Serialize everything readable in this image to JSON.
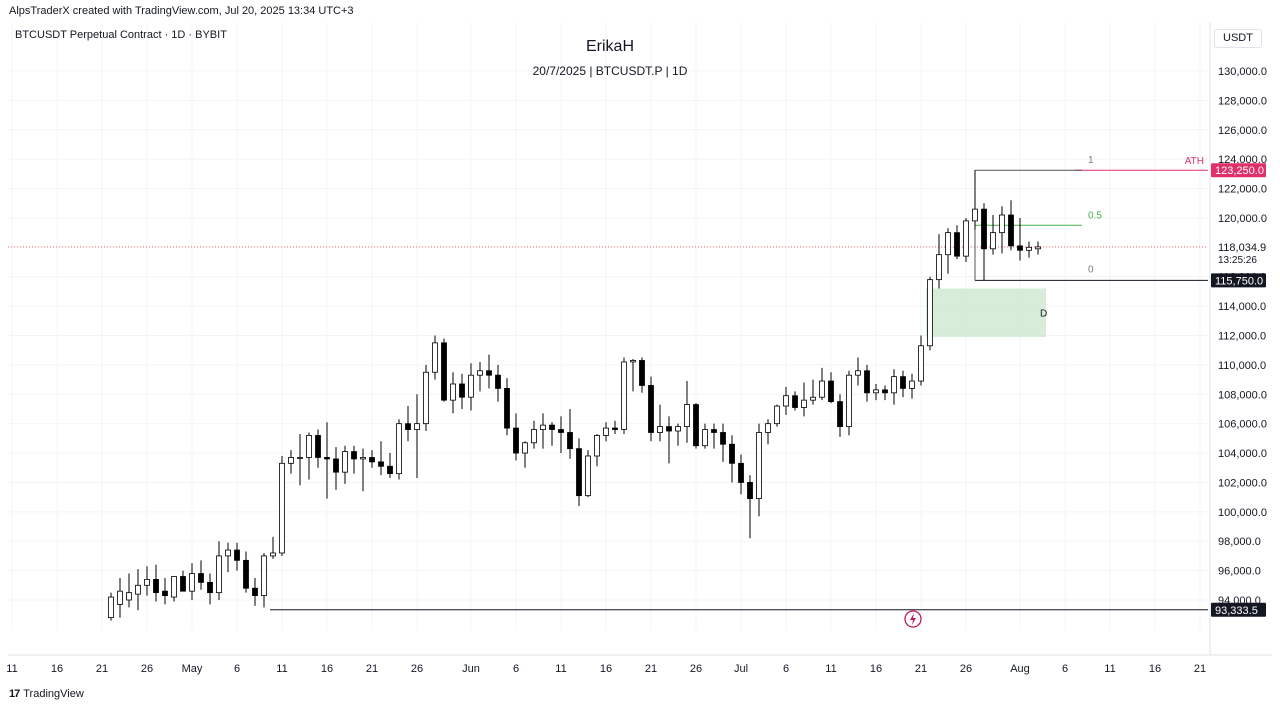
{
  "header": {
    "credit": "AlpsTraderX created with TradingView.com, Jul 20, 2025 13:34 UTC+3",
    "symbol": "BTCUSDT Perpetual Contract · 1D · BYBIT",
    "title": "ErikaH",
    "subtitle": "20/7/2025 | BTCUSDT.P | 1D",
    "currency": "USDT"
  },
  "footer": {
    "brand": "TradingView",
    "logo": "17"
  },
  "colors": {
    "up": "#ffffff",
    "down": "#000000",
    "ath": "#e0306a",
    "fib_mid": "#4caf50",
    "zone": "#c8e6c9",
    "price_dotted": "#f06b6b"
  },
  "chart_data": {
    "type": "candlestick",
    "ylim": [
      92600,
      131800
    ],
    "y_ticks": [
      "94,000.0",
      "96,000.0",
      "98,000.0",
      "100,000.0",
      "102,000.0",
      "104,000.0",
      "106,000.0",
      "108,000.0",
      "110,000.0",
      "112,000.0",
      "114,000.0",
      "116,000.0",
      "118,000.0",
      "120,000.0",
      "122,000.0",
      "124,000.0",
      "126,000.0",
      "128,000.0",
      "130,000.0"
    ],
    "x_ticks": [
      "11",
      "16",
      "21",
      "26",
      "May",
      "6",
      "11",
      "16",
      "21",
      "26",
      "Jun",
      "6",
      "11",
      "16",
      "21",
      "26",
      "Jul",
      "6",
      "11",
      "16",
      "21",
      "26",
      "Aug",
      "6",
      "11",
      "16",
      "21"
    ],
    "x_tick_days": [
      0,
      5,
      10,
      15,
      20,
      25,
      30,
      35,
      40,
      45,
      51,
      56,
      61,
      66,
      71,
      76,
      81,
      86,
      91,
      96,
      101,
      106,
      112,
      117,
      122,
      127,
      132
    ],
    "xlim_days": [
      0,
      132
    ],
    "first_day": "Apr 11",
    "candles": [
      {
        "d": 11,
        "o": 92800,
        "h": 94500,
        "l": 92600,
        "c": 94200
      },
      {
        "d": 12,
        "o": 93700,
        "h": 95500,
        "l": 92800,
        "c": 94600
      },
      {
        "d": 13,
        "o": 94000,
        "h": 95800,
        "l": 93500,
        "c": 94500
      },
      {
        "d": 14,
        "o": 94400,
        "h": 96100,
        "l": 93300,
        "c": 95000
      },
      {
        "d": 15,
        "o": 95000,
        "h": 96300,
        "l": 94300,
        "c": 95400
      },
      {
        "d": 16,
        "o": 95400,
        "h": 96400,
        "l": 93900,
        "c": 94500
      },
      {
        "d": 17,
        "o": 94600,
        "h": 95500,
        "l": 93700,
        "c": 94300
      },
      {
        "d": 18,
        "o": 94200,
        "h": 95500,
        "l": 93900,
        "c": 95600
      },
      {
        "d": 19,
        "o": 95600,
        "h": 96000,
        "l": 94600,
        "c": 94600
      },
      {
        "d": 20,
        "o": 94600,
        "h": 96500,
        "l": 94000,
        "c": 95800
      },
      {
        "d": 21,
        "o": 95800,
        "h": 96700,
        "l": 94700,
        "c": 95200
      },
      {
        "d": 22,
        "o": 95200,
        "h": 95800,
        "l": 93700,
        "c": 94500
      },
      {
        "d": 23,
        "o": 94500,
        "h": 98000,
        "l": 94000,
        "c": 97000
      },
      {
        "d": 24,
        "o": 97000,
        "h": 97900,
        "l": 95900,
        "c": 97400
      },
      {
        "d": 25,
        "o": 97400,
        "h": 97900,
        "l": 96000,
        "c": 96700
      },
      {
        "d": 26,
        "o": 96700,
        "h": 97300,
        "l": 94500,
        "c": 94800
      },
      {
        "d": 27,
        "o": 94800,
        "h": 95500,
        "l": 93600,
        "c": 94300
      },
      {
        "d": 28,
        "o": 94300,
        "h": 97200,
        "l": 93500,
        "c": 97000
      },
      {
        "d": 29,
        "o": 97000,
        "h": 98300,
        "l": 96800,
        "c": 97200
      },
      {
        "d": 30,
        "o": 97200,
        "h": 103800,
        "l": 97000,
        "c": 103300
      },
      {
        "d": 31,
        "o": 103300,
        "h": 104200,
        "l": 102600,
        "c": 103700
      },
      {
        "d": 32,
        "o": 103700,
        "h": 105300,
        "l": 101800,
        "c": 103700
      },
      {
        "d": 33,
        "o": 103700,
        "h": 105400,
        "l": 102200,
        "c": 105200
      },
      {
        "d": 34,
        "o": 105200,
        "h": 105600,
        "l": 103000,
        "c": 103700
      },
      {
        "d": 35,
        "o": 103700,
        "h": 106100,
        "l": 100900,
        "c": 103600
      },
      {
        "d": 36,
        "o": 103600,
        "h": 104400,
        "l": 101500,
        "c": 102700
      },
      {
        "d": 37,
        "o": 102700,
        "h": 104500,
        "l": 101900,
        "c": 104100
      },
      {
        "d": 38,
        "o": 104100,
        "h": 104500,
        "l": 102600,
        "c": 103600
      },
      {
        "d": 39,
        "o": 103600,
        "h": 104300,
        "l": 101400,
        "c": 103700
      },
      {
        "d": 40,
        "o": 103700,
        "h": 104200,
        "l": 103000,
        "c": 103400
      },
      {
        "d": 41,
        "o": 103400,
        "h": 104800,
        "l": 102500,
        "c": 103100
      },
      {
        "d": 42,
        "o": 103100,
        "h": 104000,
        "l": 102300,
        "c": 102600
      },
      {
        "d": 43,
        "o": 102600,
        "h": 106300,
        "l": 102200,
        "c": 106000
      },
      {
        "d": 44,
        "o": 106000,
        "h": 107200,
        "l": 104800,
        "c": 105600
      },
      {
        "d": 45,
        "o": 105600,
        "h": 108000,
        "l": 102300,
        "c": 106000
      },
      {
        "d": 46,
        "o": 106000,
        "h": 110000,
        "l": 105500,
        "c": 109500
      },
      {
        "d": 47,
        "o": 109500,
        "h": 112000,
        "l": 109000,
        "c": 111500
      },
      {
        "d": 48,
        "o": 111500,
        "h": 111800,
        "l": 107500,
        "c": 107600
      },
      {
        "d": 49,
        "o": 107600,
        "h": 109500,
        "l": 106700,
        "c": 108700
      },
      {
        "d": 50,
        "o": 108700,
        "h": 109400,
        "l": 107000,
        "c": 107800
      },
      {
        "d": 51,
        "o": 107800,
        "h": 110100,
        "l": 106900,
        "c": 109300
      },
      {
        "d": 52,
        "o": 109300,
        "h": 110200,
        "l": 108200,
        "c": 109600
      },
      {
        "d": 53,
        "o": 109600,
        "h": 110700,
        "l": 108400,
        "c": 109300
      },
      {
        "d": 54,
        "o": 109300,
        "h": 110000,
        "l": 107500,
        "c": 108400
      },
      {
        "d": 55,
        "o": 108400,
        "h": 109100,
        "l": 105200,
        "c": 105700
      },
      {
        "d": 56,
        "o": 105700,
        "h": 106700,
        "l": 103500,
        "c": 104000
      },
      {
        "d": 57,
        "o": 104000,
        "h": 104800,
        "l": 103000,
        "c": 104700
      },
      {
        "d": 58,
        "o": 104700,
        "h": 106200,
        "l": 104300,
        "c": 105600
      },
      {
        "d": 59,
        "o": 105600,
        "h": 106700,
        "l": 104300,
        "c": 105900
      },
      {
        "d": 60,
        "o": 105900,
        "h": 106100,
        "l": 104500,
        "c": 105600
      },
      {
        "d": 61,
        "o": 105600,
        "h": 106500,
        "l": 104000,
        "c": 105400
      },
      {
        "d": 62,
        "o": 105400,
        "h": 107000,
        "l": 103600,
        "c": 104300
      },
      {
        "d": 63,
        "o": 104300,
        "h": 105000,
        "l": 100400,
        "c": 101100
      },
      {
        "d": 64,
        "o": 101100,
        "h": 104200,
        "l": 101000,
        "c": 103800
      },
      {
        "d": 65,
        "o": 103800,
        "h": 105300,
        "l": 103100,
        "c": 105200
      },
      {
        "d": 66,
        "o": 105200,
        "h": 106100,
        "l": 104800,
        "c": 105700
      },
      {
        "d": 67,
        "o": 105700,
        "h": 106200,
        "l": 105300,
        "c": 105600
      },
      {
        "d": 68,
        "o": 105600,
        "h": 110500,
        "l": 105300,
        "c": 110200
      },
      {
        "d": 69,
        "o": 110200,
        "h": 110400,
        "l": 108200,
        "c": 110300
      },
      {
        "d": 70,
        "o": 110300,
        "h": 110500,
        "l": 108100,
        "c": 108600
      },
      {
        "d": 71,
        "o": 108600,
        "h": 109200,
        "l": 104800,
        "c": 105400
      },
      {
        "d": 72,
        "o": 105400,
        "h": 107300,
        "l": 104800,
        "c": 105800
      },
      {
        "d": 73,
        "o": 105800,
        "h": 106500,
        "l": 103300,
        "c": 105500
      },
      {
        "d": 74,
        "o": 105500,
        "h": 106000,
        "l": 104500,
        "c": 105800
      },
      {
        "d": 75,
        "o": 105800,
        "h": 108900,
        "l": 104700,
        "c": 107300
      },
      {
        "d": 76,
        "o": 107300,
        "h": 107400,
        "l": 104300,
        "c": 104500
      },
      {
        "d": 77,
        "o": 104500,
        "h": 106000,
        "l": 104300,
        "c": 105600
      },
      {
        "d": 78,
        "o": 105600,
        "h": 106000,
        "l": 104300,
        "c": 105400
      },
      {
        "d": 79,
        "o": 105400,
        "h": 106000,
        "l": 103400,
        "c": 104600
      },
      {
        "d": 80,
        "o": 104600,
        "h": 105200,
        "l": 102000,
        "c": 103300
      },
      {
        "d": 81,
        "o": 103300,
        "h": 103900,
        "l": 101200,
        "c": 102000
      },
      {
        "d": 82,
        "o": 102000,
        "h": 102500,
        "l": 98200,
        "c": 100900
      },
      {
        "d": 83,
        "o": 100900,
        "h": 106000,
        "l": 99700,
        "c": 105400
      },
      {
        "d": 84,
        "o": 105400,
        "h": 106300,
        "l": 104600,
        "c": 106000
      },
      {
        "d": 85,
        "o": 106000,
        "h": 107300,
        "l": 105800,
        "c": 107200
      },
      {
        "d": 86,
        "o": 107200,
        "h": 108500,
        "l": 106600,
        "c": 107900
      },
      {
        "d": 87,
        "o": 107900,
        "h": 108200,
        "l": 106900,
        "c": 107100
      },
      {
        "d": 88,
        "o": 107100,
        "h": 108800,
        "l": 106500,
        "c": 107600
      },
      {
        "d": 89,
        "o": 107600,
        "h": 109000,
        "l": 107300,
        "c": 107800
      },
      {
        "d": 90,
        "o": 107800,
        "h": 109800,
        "l": 107600,
        "c": 108900
      },
      {
        "d": 91,
        "o": 108900,
        "h": 109500,
        "l": 107400,
        "c": 107500
      },
      {
        "d": 92,
        "o": 107500,
        "h": 108000,
        "l": 105100,
        "c": 105800
      },
      {
        "d": 93,
        "o": 105800,
        "h": 109600,
        "l": 105200,
        "c": 109300
      },
      {
        "d": 94,
        "o": 109300,
        "h": 110500,
        "l": 108600,
        "c": 109600
      },
      {
        "d": 95,
        "o": 109600,
        "h": 110000,
        "l": 107500,
        "c": 108100
      },
      {
        "d": 96,
        "o": 108100,
        "h": 108700,
        "l": 107600,
        "c": 108300
      },
      {
        "d": 97,
        "o": 108300,
        "h": 108600,
        "l": 107600,
        "c": 108100
      },
      {
        "d": 98,
        "o": 108100,
        "h": 109700,
        "l": 107300,
        "c": 109200
      },
      {
        "d": 99,
        "o": 109200,
        "h": 109600,
        "l": 107800,
        "c": 108400
      },
      {
        "d": 100,
        "o": 108400,
        "h": 109400,
        "l": 107700,
        "c": 108900
      },
      {
        "d": 101,
        "o": 108900,
        "h": 112000,
        "l": 108600,
        "c": 111300
      },
      {
        "d": 102,
        "o": 111300,
        "h": 116000,
        "l": 111000,
        "c": 115800
      },
      {
        "d": 103,
        "o": 115800,
        "h": 118900,
        "l": 115200,
        "c": 117500
      },
      {
        "d": 104,
        "o": 117500,
        "h": 119300,
        "l": 116200,
        "c": 119000
      },
      {
        "d": 105,
        "o": 119000,
        "h": 119500,
        "l": 117200,
        "c": 117400
      },
      {
        "d": 106,
        "o": 117400,
        "h": 120000,
        "l": 117000,
        "c": 119800
      },
      {
        "d": 107,
        "o": 119800,
        "h": 123250,
        "l": 119200,
        "c": 120600
      },
      {
        "d": 108,
        "o": 120600,
        "h": 121000,
        "l": 115750,
        "c": 117900
      },
      {
        "d": 109,
        "o": 117900,
        "h": 120200,
        "l": 117500,
        "c": 119000
      },
      {
        "d": 110,
        "o": 119000,
        "h": 120800,
        "l": 117600,
        "c": 120200
      },
      {
        "d": 111,
        "o": 120200,
        "h": 121200,
        "l": 117800,
        "c": 118100
      },
      {
        "d": 112,
        "o": 118100,
        "h": 120000,
        "l": 117100,
        "c": 117800
      },
      {
        "d": 113,
        "o": 117800,
        "h": 118400,
        "l": 117300,
        "c": 118000
      },
      {
        "d": 114,
        "o": 117900,
        "h": 118400,
        "l": 117500,
        "c": 118030
      }
    ],
    "levels": {
      "ath": {
        "value": 123250,
        "label": "ATH",
        "price_label": "123,250.0"
      },
      "fib_1": {
        "value": 123250,
        "label": "1"
      },
      "fib_05": {
        "value": 119500,
        "label": "0.5"
      },
      "fib_0": {
        "value": 115750,
        "label": "0",
        "price_label": "115,750.0"
      },
      "low": {
        "value": 93333.5,
        "price_label": "93,333.5"
      },
      "current": {
        "value": 118034.9,
        "price_label": "118,034.9",
        "countdown": "13:25:26"
      }
    },
    "zone": {
      "top": 115200,
      "bottom": 111900,
      "label": "D",
      "start_day": 102,
      "end_day": 114
    }
  }
}
